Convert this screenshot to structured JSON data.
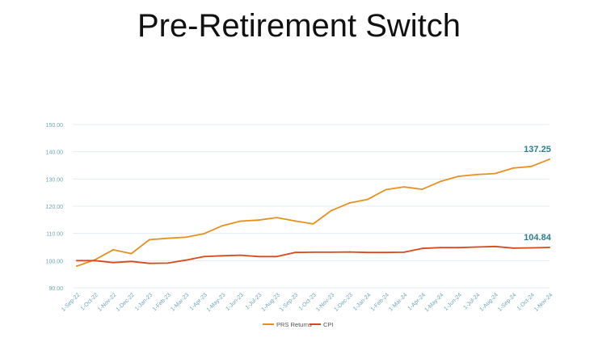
{
  "slide": {
    "title": "Pre-Retirement Switch"
  },
  "chart_data": {
    "type": "line",
    "title": "",
    "xlabel": "",
    "ylabel": "",
    "ylim": [
      90,
      150
    ],
    "yticks": [
      "90.00",
      "100.00",
      "110.00",
      "120.00",
      "130.00",
      "140.00",
      "150.00"
    ],
    "grid": true,
    "legend": "bottom",
    "categories": [
      "1-Sep-22",
      "1-Oct-22",
      "1-Nov-22",
      "1-Dec-22",
      "1-Jan-23",
      "1-Feb-23",
      "1-Mar-23",
      "1-Apr-23",
      "1-May-23",
      "1-Jun-23",
      "1-Jul-23",
      "1-Aug-23",
      "1-Sep-23",
      "1-Oct-23",
      "1-Nov-23",
      "1-Dec-23",
      "1-Jan-24",
      "1-Feb-24",
      "1-Mar-24",
      "1-Apr-24",
      "1-May-24",
      "1-Jun-24",
      "1-Jul-24",
      "1-Aug-24",
      "1-Sep-24",
      "1-Oct-24",
      "1-Nov-24"
    ],
    "series": [
      {
        "name": "PRS Returns",
        "color": "#E8901F",
        "end_label": "137.25",
        "values": [
          98.0,
          100.3,
          104.0,
          102.6,
          107.7,
          108.2,
          108.6,
          109.9,
          112.8,
          114.5,
          114.9,
          115.8,
          114.6,
          113.5,
          118.4,
          121.2,
          122.5,
          126.1,
          127.1,
          126.2,
          129.1,
          131.0,
          131.6,
          132.0,
          134.0,
          134.6,
          137.25
        ]
      },
      {
        "name": "CPI",
        "color": "#D84A1B",
        "end_label": "104.84",
        "values": [
          100.0,
          100.0,
          99.3,
          99.7,
          99.0,
          99.1,
          100.2,
          101.5,
          101.8,
          102.0,
          101.5,
          101.5,
          103.0,
          103.1,
          103.1,
          103.2,
          103.0,
          103.0,
          103.1,
          104.5,
          104.8,
          104.8,
          105.0,
          105.2,
          104.6,
          104.7,
          104.84
        ]
      }
    ],
    "colors": {
      "axis_text": "#6DA5B8",
      "grid": "#E3EEF2",
      "end_label": "#2A7F8F"
    }
  }
}
